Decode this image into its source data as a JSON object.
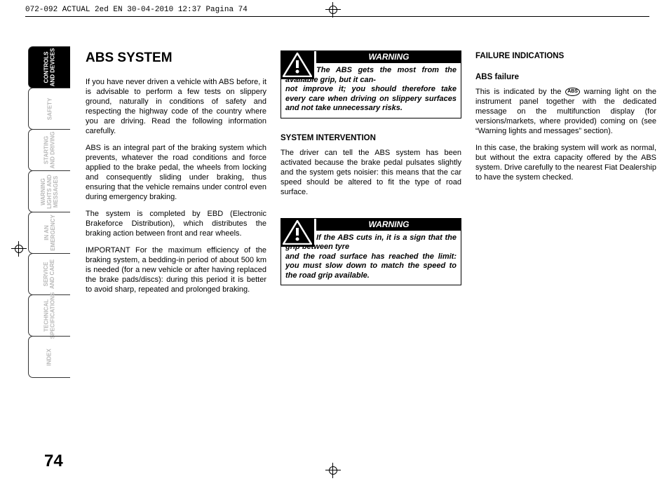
{
  "header": "072-092 ACTUAL 2ed EN  30-04-2010  12:37  Pagina 74",
  "page_number": "74",
  "tabs": [
    {
      "label": "CONTROLS\nAND DEVICES",
      "active": true
    },
    {
      "label": "SAFETY",
      "active": false
    },
    {
      "label": "STARTING\nAND DRIVING",
      "active": false
    },
    {
      "label": "WARNING\nLIGHTS AND\nMESSAGES",
      "active": false
    },
    {
      "label": "IN AN\nEMERGENCY",
      "active": false
    },
    {
      "label": "SERVICE\nAND CARE",
      "active": false
    },
    {
      "label": "TECHNICAL\nSPECIFICATIONS",
      "active": false
    },
    {
      "label": "INDEX",
      "active": false
    }
  ],
  "col1": {
    "title": "ABS SYSTEM",
    "p1": "If you have never driven a vehicle with ABS before, it is advisable to perform a few tests on slippery ground, naturally in conditions of safety and respecting the highway code of the country where you are driving. Read the following information carefully.",
    "p2": "ABS is an integral part of the braking system which prevents, whatever the road conditions and force applied to the brake pedal, the wheels from locking and consequently sliding under braking, thus ensuring that the vehicle remains under control even during emergency braking.",
    "p3": "The system is completed by EBD (Electronic Brakeforce Distribution), which distributes the braking action between front and rear wheels.",
    "p4": "IMPORTANT For the maximum efficiency of the braking system, a bedding-in period of about 500 km is needed (for a new vehicle or after having replaced the brake pads/discs): during this period it is better to avoid sharp, repeated and prolonged braking."
  },
  "col2": {
    "warn1_head": "WARNING",
    "warn1_line1": "The ABS gets the most from the available grip, but it can-",
    "warn1_rest": "not improve it; you should therefore take every care when driving on slippery surfaces and not take unnecessary risks.",
    "sec1_title": "SYSTEM INTERVENTION",
    "sec1_body": "The driver can tell the ABS system has been activated because the brake pedal pulsates slightly and the system gets noisier: this means that the car speed should be altered to fit the type of road surface.",
    "warn2_head": "WARNING",
    "warn2_line1": "If the ABS cuts in, it is a sign that the grip between tyre",
    "warn2_rest": "and the road surface has reached the limit: you must slow down to match the speed to the road grip available."
  },
  "col3": {
    "title": "FAILURE INDICATIONS",
    "sub": "ABS failure",
    "p1a": "This is indicated by the ",
    "p1b": " warning light on the instrument panel together with the dedicated message on the multifunction display (for versions/markets, where provided) coming on (see “Warning lights and messages” section).",
    "p2": "In this case, the braking system will work as normal, but without the extra capacity offered by the ABS system. Drive carefully to the nearest Fiat Dealership to have the system checked."
  }
}
